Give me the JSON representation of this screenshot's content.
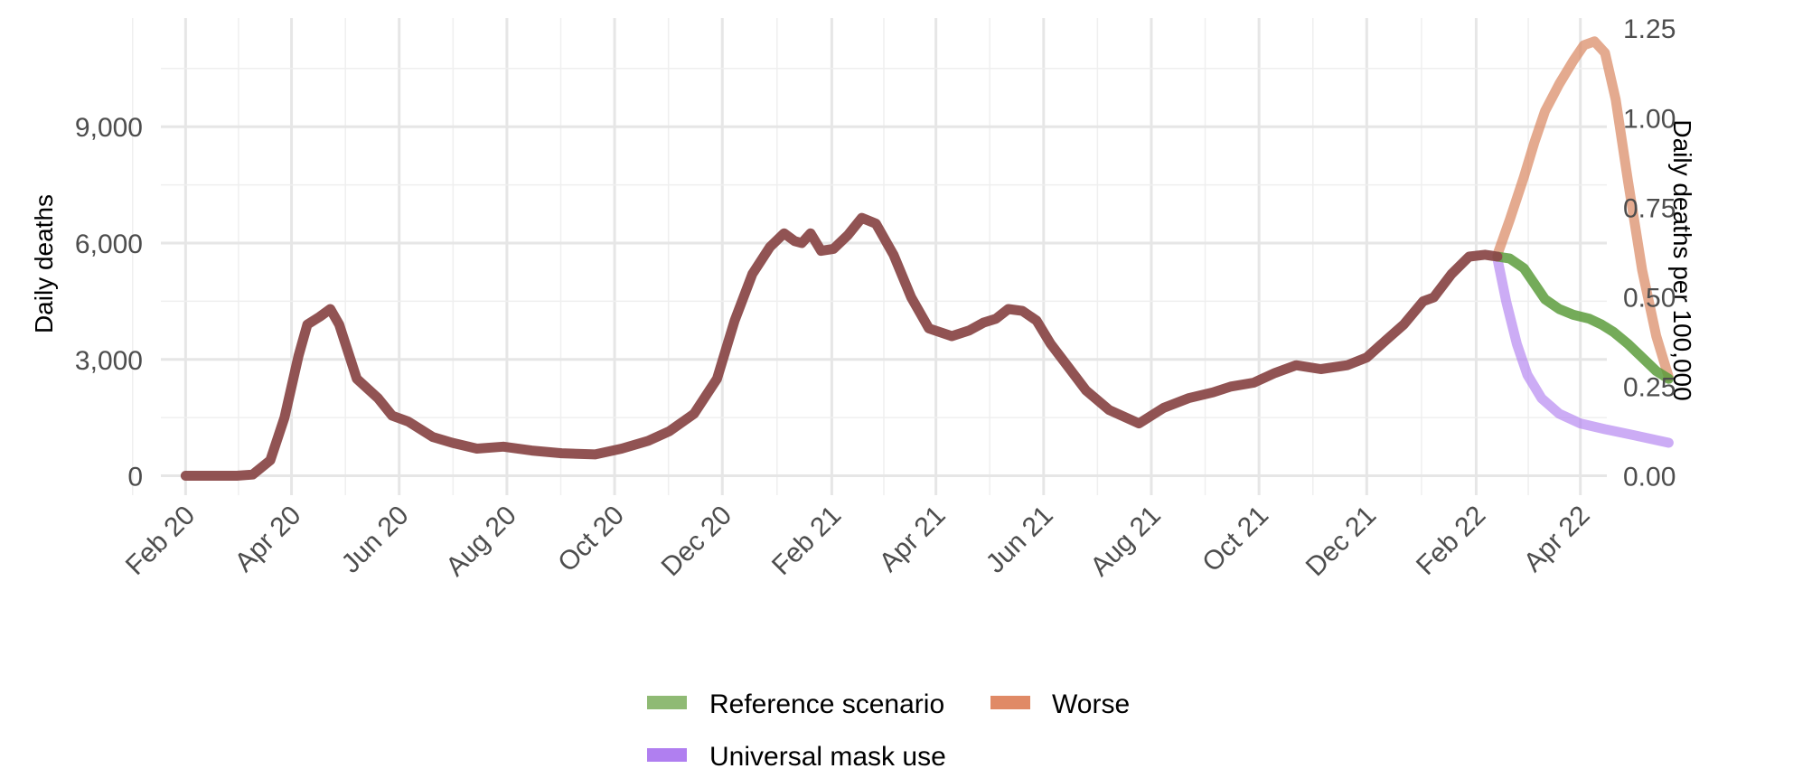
{
  "chart_data": {
    "type": "line",
    "ylabel": "Daily deaths",
    "y2label": "Daily deaths per 100,000",
    "x_ticks": [
      "Feb 20",
      "Apr 20",
      "Jun 20",
      "Aug 20",
      "Oct 20",
      "Dec 20",
      "Feb 21",
      "Apr 21",
      "Jun 21",
      "Aug 21",
      "Oct 21",
      "Dec 21",
      "Feb 22",
      "Apr 22"
    ],
    "xlim": [
      "2020-01-18",
      "2022-04-16"
    ],
    "y_ticks": [
      "0",
      "3,000",
      "6,000",
      "9,000"
    ],
    "ylim": [
      -500,
      11800
    ],
    "y2_ticks": [
      "0.00",
      "0.25",
      "0.50",
      "0.75",
      "1.00",
      "1.25"
    ],
    "y2_per_unit": 0.00010833,
    "grid": true,
    "legend_position": "bottom",
    "series": [
      {
        "name": "",
        "color": "#8b4a4a",
        "points": [
          [
            "2020-02-01",
            0
          ],
          [
            "2020-03-01",
            0
          ],
          [
            "2020-03-10",
            30
          ],
          [
            "2020-03-20",
            400
          ],
          [
            "2020-03-28",
            1500
          ],
          [
            "2020-04-05",
            3100
          ],
          [
            "2020-04-10",
            3900
          ],
          [
            "2020-04-17",
            4100
          ],
          [
            "2020-04-23",
            4300
          ],
          [
            "2020-04-28",
            3900
          ],
          [
            "2020-05-08",
            2500
          ],
          [
            "2020-05-20",
            2000
          ],
          [
            "2020-05-28",
            1550
          ],
          [
            "2020-06-06",
            1400
          ],
          [
            "2020-06-20",
            1000
          ],
          [
            "2020-07-01",
            850
          ],
          [
            "2020-07-15",
            700
          ],
          [
            "2020-07-30",
            750
          ],
          [
            "2020-08-15",
            650
          ],
          [
            "2020-09-01",
            580
          ],
          [
            "2020-09-20",
            550
          ],
          [
            "2020-10-05",
            700
          ],
          [
            "2020-10-20",
            900
          ],
          [
            "2020-11-01",
            1150
          ],
          [
            "2020-11-15",
            1600
          ],
          [
            "2020-11-28",
            2500
          ],
          [
            "2020-12-08",
            4000
          ],
          [
            "2020-12-18",
            5200
          ],
          [
            "2020-12-28",
            5900
          ],
          [
            "2021-01-05",
            6250
          ],
          [
            "2021-01-11",
            6050
          ],
          [
            "2021-01-15",
            6000
          ],
          [
            "2021-01-20",
            6250
          ],
          [
            "2021-01-26",
            5800
          ],
          [
            "2021-02-02",
            5850
          ],
          [
            "2021-02-10",
            6200
          ],
          [
            "2021-02-18",
            6650
          ],
          [
            "2021-02-26",
            6500
          ],
          [
            "2021-03-08",
            5700
          ],
          [
            "2021-03-18",
            4600
          ],
          [
            "2021-03-28",
            3800
          ],
          [
            "2021-04-10",
            3600
          ],
          [
            "2021-04-20",
            3750
          ],
          [
            "2021-04-28",
            3950
          ],
          [
            "2021-05-05",
            4050
          ],
          [
            "2021-05-12",
            4300
          ],
          [
            "2021-05-20",
            4250
          ],
          [
            "2021-05-28",
            4000
          ],
          [
            "2021-06-05",
            3400
          ],
          [
            "2021-06-15",
            2800
          ],
          [
            "2021-06-25",
            2200
          ],
          [
            "2021-07-08",
            1700
          ],
          [
            "2021-07-25",
            1350
          ],
          [
            "2021-08-08",
            1750
          ],
          [
            "2021-08-22",
            2000
          ],
          [
            "2021-09-05",
            2150
          ],
          [
            "2021-09-15",
            2300
          ],
          [
            "2021-09-28",
            2400
          ],
          [
            "2021-10-10",
            2650
          ],
          [
            "2021-10-22",
            2850
          ],
          [
            "2021-11-05",
            2750
          ],
          [
            "2021-11-20",
            2850
          ],
          [
            "2021-12-01",
            3050
          ],
          [
            "2021-12-12",
            3500
          ],
          [
            "2021-12-22",
            3900
          ],
          [
            "2022-01-02",
            4500
          ],
          [
            "2022-01-08",
            4600
          ],
          [
            "2022-01-18",
            5200
          ],
          [
            "2022-01-28",
            5650
          ],
          [
            "2022-02-06",
            5700
          ],
          [
            "2022-02-13",
            5650
          ]
        ]
      },
      {
        "name": "Reference scenario",
        "color": "#5c9c3c",
        "points": [
          [
            "2022-02-13",
            5650
          ],
          [
            "2022-02-20",
            5600
          ],
          [
            "2022-02-28",
            5350
          ],
          [
            "2022-03-06",
            4950
          ],
          [
            "2022-03-12",
            4550
          ],
          [
            "2022-03-20",
            4300
          ],
          [
            "2022-03-28",
            4150
          ],
          [
            "2022-04-06",
            4050
          ],
          [
            "2022-04-13",
            3900
          ],
          [
            "2022-04-20",
            3700
          ],
          [
            "2022-04-28",
            3400
          ],
          [
            "2022-05-06",
            3050
          ],
          [
            "2022-05-14",
            2700
          ],
          [
            "2022-05-21",
            2500
          ]
        ]
      },
      {
        "name": "Worse",
        "color": "#d9865f",
        "points": [
          [
            "2022-02-13",
            5700
          ],
          [
            "2022-02-20",
            6600
          ],
          [
            "2022-02-28",
            7700
          ],
          [
            "2022-03-06",
            8600
          ],
          [
            "2022-03-12",
            9400
          ],
          [
            "2022-03-20",
            10100
          ],
          [
            "2022-03-28",
            10700
          ],
          [
            "2022-04-03",
            11100
          ],
          [
            "2022-04-09",
            11200
          ],
          [
            "2022-04-15",
            10900
          ],
          [
            "2022-04-21",
            9700
          ],
          [
            "2022-04-28",
            7600
          ],
          [
            "2022-05-06",
            5300
          ],
          [
            "2022-05-14",
            3600
          ],
          [
            "2022-05-21",
            2550
          ]
        ]
      },
      {
        "name": "Universal mask use",
        "color": "#b07ff0",
        "points": [
          [
            "2022-02-13",
            5600
          ],
          [
            "2022-02-18",
            4500
          ],
          [
            "2022-02-24",
            3400
          ],
          [
            "2022-03-02",
            2600
          ],
          [
            "2022-03-10",
            2000
          ],
          [
            "2022-03-20",
            1600
          ],
          [
            "2022-04-01",
            1350
          ],
          [
            "2022-04-15",
            1200
          ],
          [
            "2022-05-01",
            1050
          ],
          [
            "2022-05-21",
            850
          ]
        ]
      }
    ]
  },
  "legend": {
    "items": [
      {
        "label": "Reference scenario",
        "color": "#8fba74"
      },
      {
        "label": "Worse",
        "color": "#e08a66"
      },
      {
        "label": "Universal mask use",
        "color": "#b07ff0"
      }
    ]
  }
}
